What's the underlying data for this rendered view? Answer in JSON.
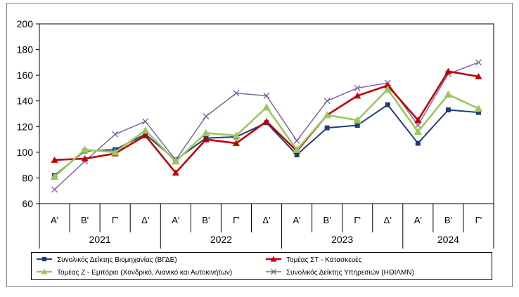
{
  "chart_data": {
    "type": "line",
    "categories": [
      "Α'",
      "Β'",
      "Γ'",
      "Δ'",
      "Α'",
      "Β'",
      "Γ'",
      "Δ'",
      "Α'",
      "Β'",
      "Γ'",
      "Δ'",
      "Α'",
      "Β'",
      "Γ'"
    ],
    "groups": [
      {
        "label": "2021",
        "span": 4
      },
      {
        "label": "2022",
        "span": 4
      },
      {
        "label": "2023",
        "span": 4
      },
      {
        "label": "2024",
        "span": 3
      }
    ],
    "ylim": [
      60,
      200
    ],
    "yticks": [
      60,
      80,
      100,
      120,
      140,
      160,
      180,
      200
    ],
    "grid": false,
    "legend_position": "bottom",
    "series": [
      {
        "name": "Συνολικός Δείκτης Βιομηχανίας (ΒΓΔΕ)",
        "color": "#1f3e78",
        "marker": "square",
        "values": [
          82,
          101,
          102,
          114,
          94,
          111,
          112,
          123,
          98,
          119,
          121,
          137,
          107,
          133,
          131
        ]
      },
      {
        "name": "Τομέας ΣΤ - Κατασκευές",
        "color": "#c00000",
        "marker": "triangle",
        "values": [
          94,
          95,
          99,
          113,
          84,
          110,
          107,
          124,
          101,
          129,
          144,
          152,
          125,
          163,
          159
        ]
      },
      {
        "name": "Τομέας Ζ - Εμπόριο (Χονδρικό, Λιανικό και Αυτοκινήτων)",
        "color": "#9bc75c",
        "marker": "triangle",
        "values": [
          81,
          102,
          100,
          117,
          93,
          115,
          113,
          135,
          102,
          129,
          125,
          149,
          116,
          145,
          134
        ]
      },
      {
        "name": "Συνολικός Δείκτης Υπηρεσιών (ΗΘΙΛΜΝ)",
        "color": "#8064a2",
        "marker": "x",
        "values": [
          71,
          93,
          114,
          124,
          94,
          128,
          146,
          144,
          109,
          140,
          150,
          154,
          121,
          161,
          170
        ]
      }
    ]
  }
}
